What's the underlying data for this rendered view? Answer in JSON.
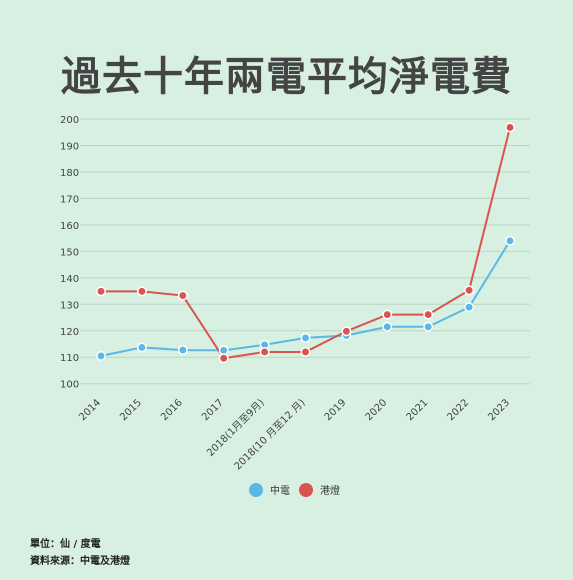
{
  "chart_data": {
    "type": "line",
    "title": "過去十年兩電平均淨電費",
    "categories": [
      "2014",
      "2015",
      "2016",
      "2017",
      "2018(1月至9月)",
      "2018(10 月至12 月)",
      "2019",
      "2020",
      "2021",
      "2022",
      "2023"
    ],
    "series": [
      {
        "name": "中電",
        "color": "#5bb8e6",
        "values": [
          110.5,
          113.7,
          112.7,
          112.6,
          114.7,
          117.3,
          118.2,
          121.5,
          121.5,
          128.9,
          154.0
        ]
      },
      {
        "name": "港燈",
        "color": "#d9534f",
        "values": [
          134.9,
          134.9,
          133.3,
          109.6,
          112.0,
          112.0,
          119.8,
          126.1,
          126.1,
          135.3,
          196.8
        ]
      }
    ],
    "yticks": [
      100,
      110,
      120,
      130,
      140,
      150,
      160,
      170,
      180,
      190,
      200
    ],
    "ylim": [
      98,
      200
    ],
    "grid": true,
    "legend_position": "bottom"
  },
  "footer": {
    "unit": "單位：仙 / 度電",
    "source": "資料來源：中電及港燈"
  }
}
